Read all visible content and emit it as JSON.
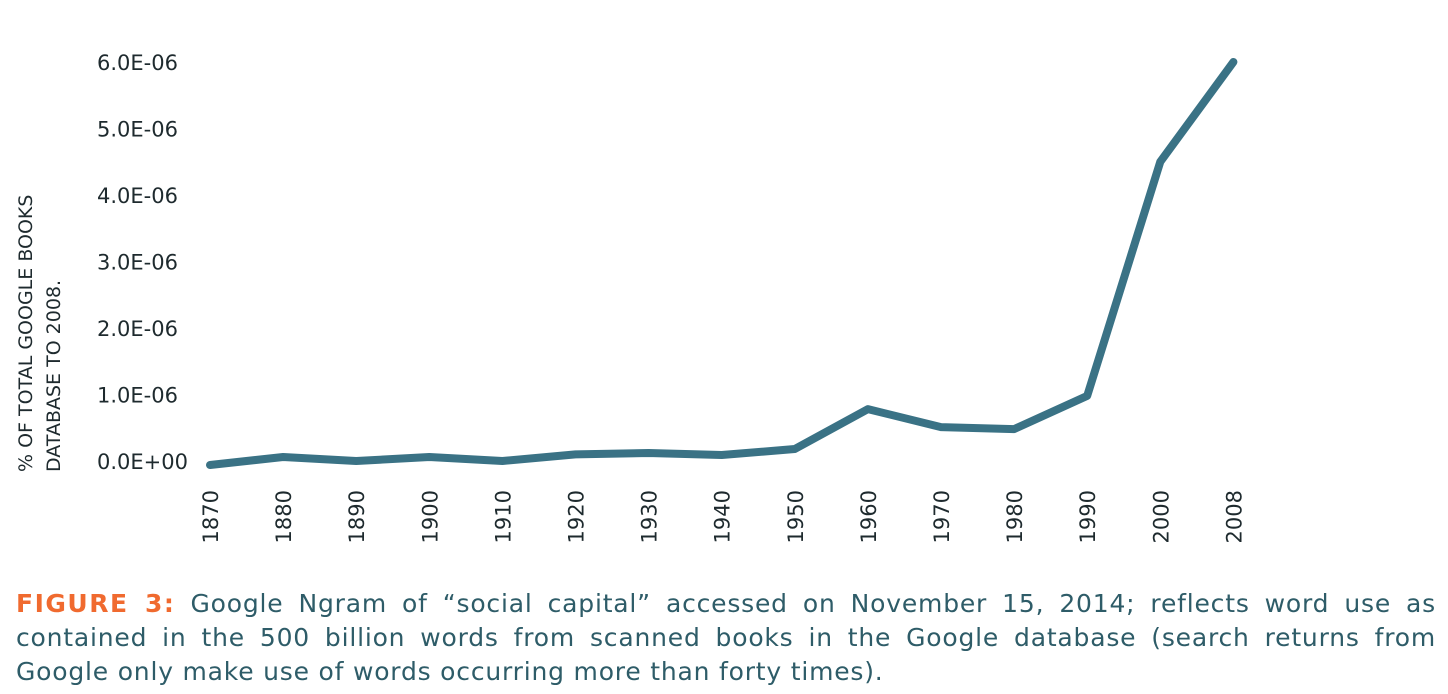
{
  "chart_data": {
    "type": "line",
    "title": "",
    "xlabel": "",
    "ylabel_lines": [
      "% OF TOTAL GOOGLE BOOKS",
      "DATABASE TO 2008."
    ],
    "categories": [
      "1870",
      "1880",
      "1890",
      "1900",
      "1910",
      "1920",
      "1930",
      "1940",
      "1950",
      "1960",
      "1970",
      "1980",
      "1990",
      "2000",
      "2008"
    ],
    "series": [
      {
        "name": "social capital",
        "color": "#3a7285",
        "values": [
          -6e-08,
          6e-08,
          0.0,
          6e-08,
          0.0,
          1e-07,
          1.2e-07,
          9e-08,
          1.8e-07,
          7.8e-07,
          5.1e-07,
          4.8e-07,
          9.8e-07,
          4.5e-06,
          6e-06
        ]
      }
    ],
    "yticks": [
      0,
      1e-06,
      2e-06,
      3e-06,
      4e-06,
      5e-06,
      6e-06
    ],
    "ytick_labels": [
      "0.0E+00",
      "1.0E-06",
      "2.0E-06",
      "3.0E-06",
      "4.0E-06",
      "5.0E-06",
      "6.0E-06"
    ],
    "ylim": [
      0,
      6e-06
    ],
    "grid": false,
    "legend": "none"
  },
  "caption": {
    "label": "FIGURE 3:",
    "text": "Google Ngram of “social capital” accessed on November 15, 2014; reflects word use as contained in the 500 billion words from scanned books in the Google database (search returns from Google only make use of words occurring more than forty times)."
  }
}
